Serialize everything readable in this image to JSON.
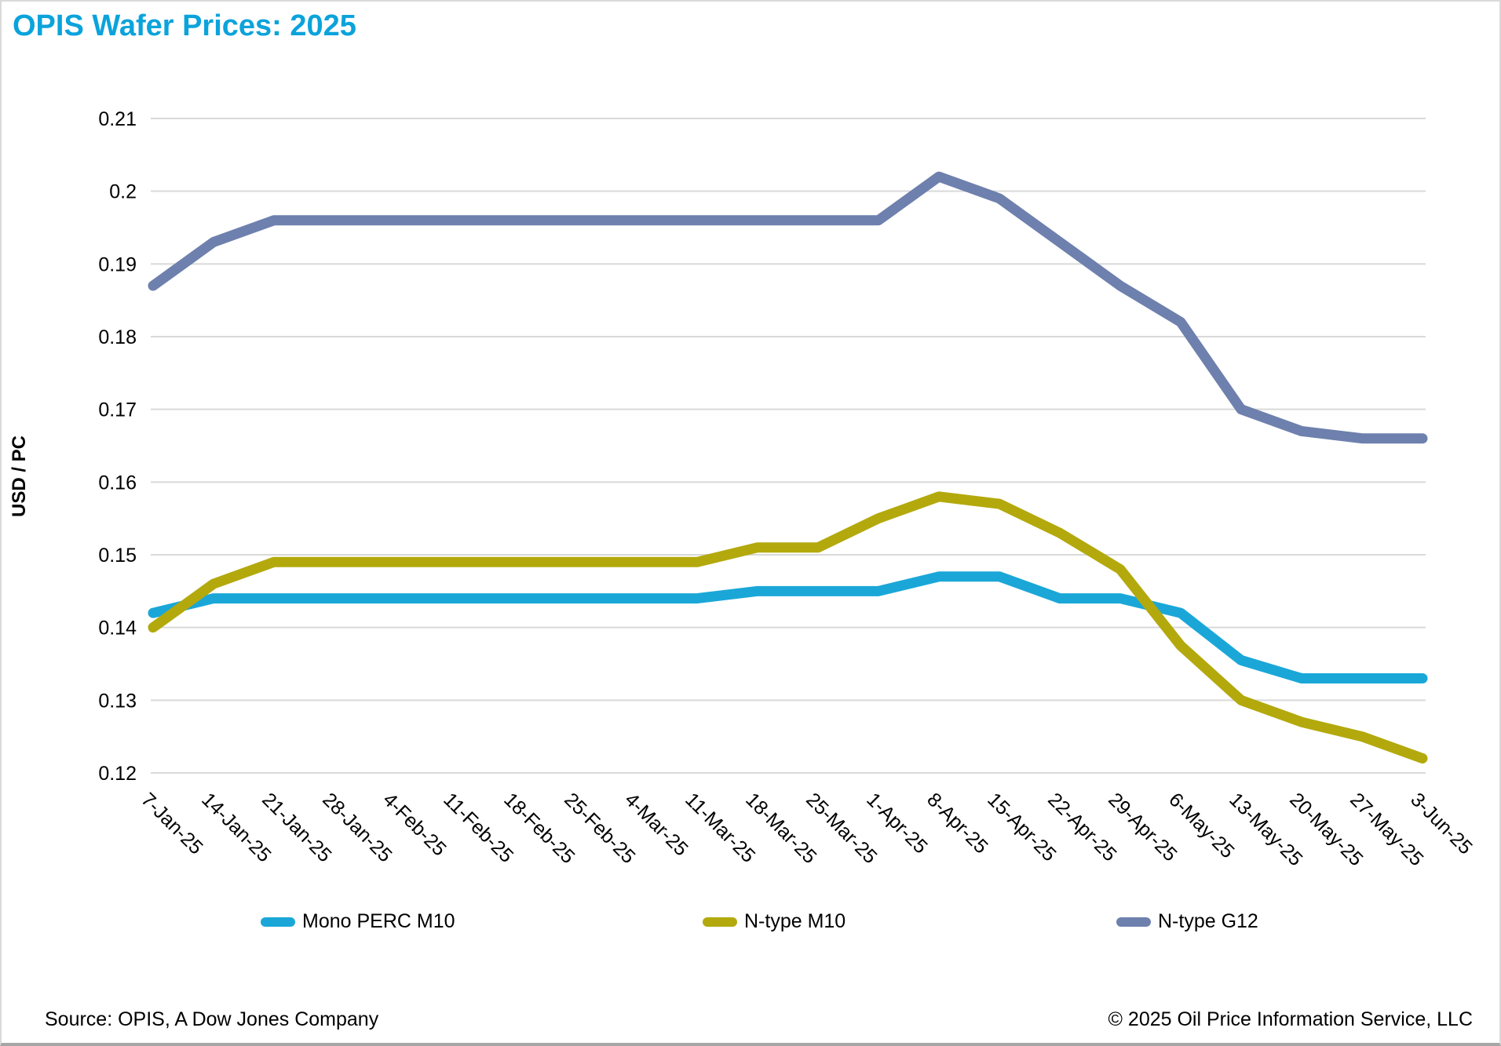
{
  "title": "OPIS Wafer Prices: 2025",
  "footer": {
    "source": "Source: OPIS, A Dow Jones Company",
    "copyright": "© 2025 Oil Price Information Service, LLC"
  },
  "colors": {
    "title": "#0ba3db",
    "grid": "#d9d9d9",
    "text": "#000000"
  },
  "chart_data": {
    "type": "line",
    "title": "OPIS Wafer Prices: 2025",
    "xlabel": "",
    "ylabel": "USD / PC",
    "ylim": [
      0.12,
      0.21
    ],
    "y_ticks": [
      0.21,
      0.2,
      0.19,
      0.18,
      0.17,
      0.16,
      0.15,
      0.14,
      0.13,
      0.12
    ],
    "grid": true,
    "legend_position": "bottom",
    "categories": [
      "7-Jan-25",
      "14-Jan-25",
      "21-Jan-25",
      "28-Jan-25",
      "4-Feb-25",
      "11-Feb-25",
      "18-Feb-25",
      "25-Feb-25",
      "4-Mar-25",
      "11-Mar-25",
      "18-Mar-25",
      "25-Mar-25",
      "1-Apr-25",
      "8-Apr-25",
      "15-Apr-25",
      "22-Apr-25",
      "29-Apr-25",
      "6-May-25",
      "13-May-25",
      "20-May-25",
      "27-May-25",
      "3-Jun-25"
    ],
    "series": [
      {
        "name": "Mono PERC M10",
        "color": "#1aa7d8",
        "values": [
          0.142,
          0.144,
          0.144,
          0.144,
          0.144,
          0.144,
          0.144,
          0.144,
          0.144,
          0.144,
          0.145,
          0.145,
          0.145,
          0.147,
          0.147,
          0.144,
          0.144,
          0.142,
          0.1355,
          0.133,
          0.133,
          0.133
        ]
      },
      {
        "name": "N-type M10",
        "color": "#b3a90c",
        "values": [
          0.14,
          0.146,
          0.149,
          0.149,
          0.149,
          0.149,
          0.149,
          0.149,
          0.149,
          0.149,
          0.151,
          0.151,
          0.155,
          0.158,
          0.157,
          0.153,
          0.148,
          0.1375,
          0.13,
          0.127,
          0.125,
          0.122
        ]
      },
      {
        "name": "N-type G12",
        "color": "#6e80ad",
        "values": [
          0.187,
          0.193,
          0.196,
          0.196,
          0.196,
          0.196,
          0.196,
          0.196,
          0.196,
          0.196,
          0.196,
          0.196,
          0.196,
          0.202,
          0.199,
          0.193,
          0.187,
          0.182,
          0.17,
          0.167,
          0.166,
          0.166
        ]
      }
    ]
  }
}
